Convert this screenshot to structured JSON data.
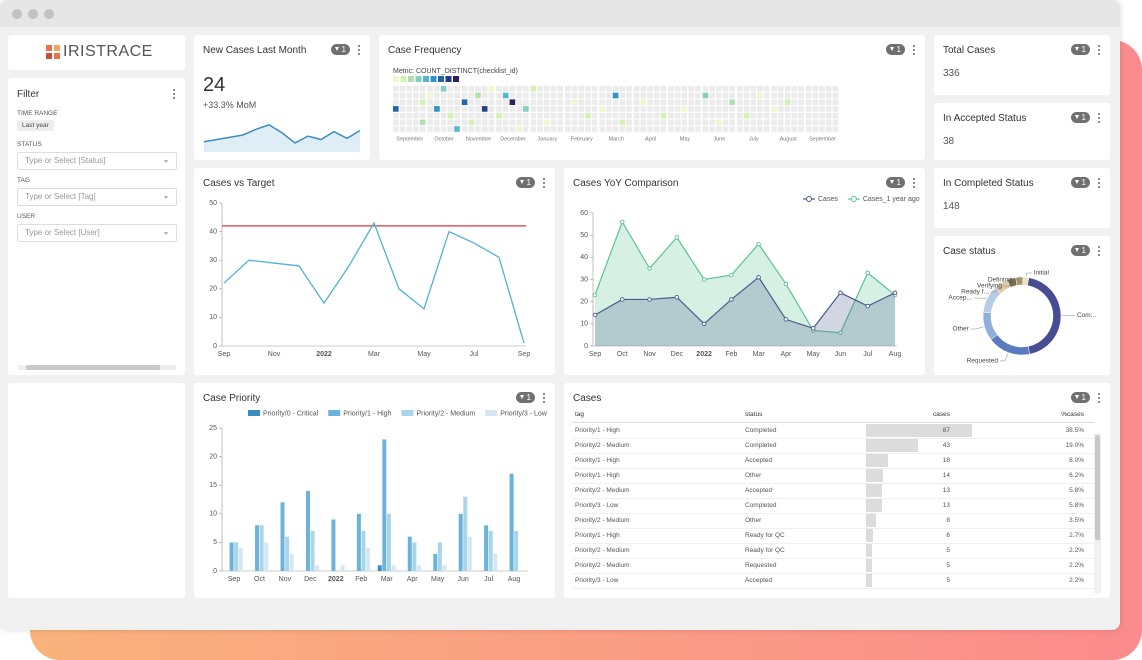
{
  "app": {
    "logo": "IRISTRACE",
    "badge": "1"
  },
  "filter": {
    "title": "Filter",
    "time_range_label": "TIME RANGE",
    "time_range_value": "Last year",
    "fields": [
      {
        "label": "STATUS",
        "placeholder": "Type or Select [Status]"
      },
      {
        "label": "TAG",
        "placeholder": "Type or Select [Tag]"
      },
      {
        "label": "USER",
        "placeholder": "Type or Select [User]"
      }
    ]
  },
  "new_cases": {
    "title": "New Cases Last Month",
    "value": 24,
    "change": "+33.3% MoM",
    "trend": [
      9,
      11,
      13,
      15,
      20,
      24,
      17,
      8,
      14,
      11,
      18,
      12,
      19
    ],
    "ylim": [
      0,
      30
    ]
  },
  "kpis": [
    {
      "title": "Total Cases",
      "value": 336
    },
    {
      "title": "In Accepted Status",
      "value": 38
    },
    {
      "title": "In Completed Status",
      "value": 148
    }
  ],
  "chart_data": [
    {
      "type": "heatmap",
      "title": "Case Frequency",
      "subtitle": "Metric: COUNT_DISTINCT(checklist_id)",
      "months": [
        "September",
        "October",
        "November",
        "December",
        "January",
        "February",
        "March",
        "April",
        "May",
        "June",
        "July",
        "August",
        "September"
      ],
      "colors": [
        "#ebebeb",
        "#eef7cf",
        "#d6efb4",
        "#b3e0b3",
        "#86cfc0",
        "#56b9d2",
        "#2e95c4",
        "#2168a8",
        "#233b8a",
        "#2b1f61"
      ],
      "cells": [
        [
          0,
          0,
          3,
          7
        ],
        [
          0,
          4,
          2,
          2
        ],
        [
          0,
          4,
          5,
          3
        ],
        [
          1,
          0,
          1,
          1
        ],
        [
          1,
          1,
          3,
          6
        ],
        [
          1,
          2,
          0,
          4
        ],
        [
          1,
          3,
          4,
          2
        ],
        [
          1,
          4,
          6,
          5
        ],
        [
          2,
          0,
          2,
          7
        ],
        [
          2,
          1,
          5,
          2
        ],
        [
          2,
          2,
          1,
          3
        ],
        [
          2,
          3,
          3,
          8
        ],
        [
          2,
          4,
          0,
          1
        ],
        [
          3,
          0,
          4,
          2
        ],
        [
          3,
          1,
          1,
          5
        ],
        [
          3,
          2,
          2,
          9
        ],
        [
          3,
          3,
          6,
          1
        ],
        [
          3,
          4,
          3,
          4
        ],
        [
          4,
          0,
          0,
          2
        ],
        [
          4,
          2,
          5,
          1
        ],
        [
          5,
          1,
          2,
          1
        ],
        [
          5,
          3,
          4,
          2
        ],
        [
          6,
          0,
          3,
          1
        ],
        [
          6,
          2,
          1,
          6
        ],
        [
          6,
          3,
          5,
          2
        ],
        [
          7,
          1,
          2,
          1
        ],
        [
          7,
          4,
          4,
          2
        ],
        [
          8,
          2,
          3,
          1
        ],
        [
          9,
          0,
          1,
          4
        ],
        [
          9,
          2,
          5,
          1
        ],
        [
          9,
          4,
          2,
          3
        ],
        [
          10,
          1,
          4,
          2
        ],
        [
          10,
          3,
          1,
          1
        ],
        [
          11,
          0,
          3,
          1
        ],
        [
          11,
          2,
          2,
          2
        ]
      ]
    },
    {
      "type": "line",
      "title": "Cases vs Target",
      "categories": [
        "Sep",
        null,
        "Nov",
        null,
        "2022",
        null,
        "Mar",
        null,
        "May",
        null,
        "Jul",
        null,
        "Sep"
      ],
      "series": [
        {
          "color": "#4fb3d3",
          "values": [
            22,
            30,
            29,
            28,
            15,
            28,
            43,
            20,
            13,
            40,
            36,
            31,
            1
          ]
        }
      ],
      "target": 42,
      "target_color": "#e05a5a",
      "ylim": [
        0,
        50
      ],
      "yticks": [
        0,
        10,
        20,
        30,
        40,
        50
      ]
    },
    {
      "type": "area",
      "title": "Cases YoY Comparison",
      "categories": [
        "Sep",
        "Oct",
        "Nov",
        "Dec",
        "2022",
        "Feb",
        "Mar",
        "Apr",
        "May",
        "Jun",
        "Jul",
        "Aug"
      ],
      "series": [
        {
          "name": "Cases",
          "color": "#4d5a8c",
          "values": [
            14,
            21,
            21,
            22,
            10,
            21,
            31,
            12,
            8,
            24,
            18,
            24
          ]
        },
        {
          "name": "Cases_1 year ago",
          "color": "#5cc394",
          "values": [
            23,
            56,
            35,
            49,
            30,
            32,
            46,
            28,
            7,
            6,
            33,
            23
          ]
        }
      ],
      "ylim": [
        0,
        60
      ],
      "yticks": [
        0,
        10,
        20,
        30,
        40,
        50,
        60
      ]
    },
    {
      "type": "donut",
      "title": "Case status",
      "categories": [
        "Com...",
        "Requested",
        "Other",
        "Accep...",
        "Ready f...",
        "Verifying",
        "Defining",
        "Initial"
      ],
      "values": [
        148,
        60,
        40,
        38,
        20,
        12,
        10,
        8
      ],
      "colors": [
        "#474c93",
        "#5b7bc0",
        "#8fb1d9",
        "#b7cbe5",
        "#dcc9a4",
        "#7a6a4c",
        "#a8936f",
        "#ece0c2"
      ]
    },
    {
      "type": "grouped_bar",
      "title": "Case Priority",
      "categories": [
        "Sep",
        "Oct",
        "Nov",
        "Dec",
        "2022",
        "Feb",
        "Mar",
        "Apr",
        "May",
        "Jun",
        "Jul",
        "Aug"
      ],
      "series": [
        {
          "name": "Priority/0 - Critical",
          "color": "#3a8cc4",
          "values": [
            0,
            0,
            0,
            0,
            0,
            0,
            1,
            0,
            0,
            0,
            0,
            0
          ]
        },
        {
          "name": "Priority/1 - High",
          "color": "#6bb3da",
          "values": [
            5,
            8,
            12,
            14,
            9,
            10,
            23,
            6,
            3,
            10,
            8,
            17
          ]
        },
        {
          "name": "Priority/2 - Medium",
          "color": "#a8d5ea",
          "values": [
            5,
            8,
            6,
            7,
            0,
            7,
            10,
            5,
            5,
            13,
            7,
            7
          ]
        },
        {
          "name": "Priority/3 - Low",
          "color": "#d3e8f3",
          "values": [
            4,
            5,
            3,
            1,
            1,
            4,
            1,
            1,
            1,
            6,
            3,
            0
          ]
        }
      ],
      "ylim": [
        0,
        25
      ],
      "yticks": [
        0,
        5,
        10,
        15,
        20,
        25
      ]
    }
  ],
  "table": {
    "title": "Cases",
    "columns": [
      "tag",
      "status",
      "cases",
      "%cases"
    ],
    "rows": [
      [
        "Priority/1 - High",
        "Completed",
        87,
        "38.5%"
      ],
      [
        "Priority/2 - Medium",
        "Completed",
        43,
        "19.0%"
      ],
      [
        "Priority/1 - High",
        "Accepted",
        18,
        "8.0%"
      ],
      [
        "Priority/1 - High",
        "Other",
        14,
        "6.2%"
      ],
      [
        "Priority/2 - Medium",
        "Accepted",
        13,
        "5.8%"
      ],
      [
        "Priority/3 - Low",
        "Completed",
        13,
        "5.8%"
      ],
      [
        "Priority/2 - Medium",
        "Other",
        8,
        "3.5%"
      ],
      [
        "Priority/1 - High",
        "Ready for QC",
        6,
        "2.7%"
      ],
      [
        "Priority/2 - Medium",
        "Ready for QC",
        5,
        "2.2%"
      ],
      [
        "Priority/2 - Medium",
        "Requested",
        5,
        "2.2%"
      ],
      [
        "Priority/3 - Low",
        "Accepted",
        5,
        "2.2%"
      ]
    ]
  }
}
